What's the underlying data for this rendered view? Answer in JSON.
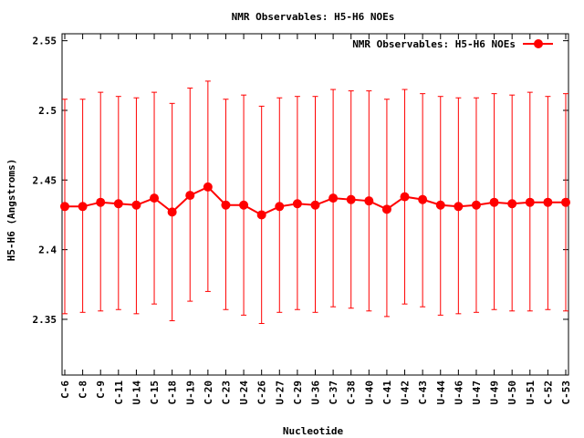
{
  "chart_data": {
    "type": "line",
    "title": "NMR Observables: H5-H6 NOEs",
    "xlabel": "Nucleotide",
    "ylabel": "H5-H6 (Angstroms)",
    "ylim": [
      2.31,
      2.555
    ],
    "yticks": [
      "2.35",
      "2.4",
      "2.45",
      "2.5",
      "2.55"
    ],
    "ytick_values": [
      2.35,
      2.4,
      2.45,
      2.5,
      2.55
    ],
    "grid": false,
    "legend_position": "top-right",
    "categories": [
      "C-6",
      "C-8",
      "C-9",
      "C-11",
      "U-14",
      "C-15",
      "C-18",
      "U-19",
      "C-20",
      "C-23",
      "U-24",
      "C-26",
      "U-27",
      "C-29",
      "U-36",
      "C-37",
      "C-38",
      "U-40",
      "C-41",
      "U-42",
      "C-43",
      "U-44",
      "U-46",
      "U-47",
      "U-49",
      "U-50",
      "U-51",
      "C-52",
      "C-53"
    ],
    "series": [
      {
        "name": "NMR Observables: H5-H6 NOEs",
        "color": "#ff0000",
        "values": [
          2.431,
          2.431,
          2.434,
          2.433,
          2.432,
          2.437,
          2.427,
          2.439,
          2.445,
          2.432,
          2.432,
          2.425,
          2.431,
          2.433,
          2.432,
          2.437,
          2.436,
          2.435,
          2.429,
          2.438,
          2.436,
          2.432,
          2.431,
          2.432,
          2.434,
          2.433,
          2.434,
          2.434,
          2.434
        ],
        "err_low": [
          2.354,
          2.355,
          2.356,
          2.357,
          2.354,
          2.361,
          2.349,
          2.363,
          2.37,
          2.357,
          2.353,
          2.347,
          2.355,
          2.357,
          2.355,
          2.359,
          2.358,
          2.356,
          2.352,
          2.361,
          2.359,
          2.353,
          2.354,
          2.355,
          2.357,
          2.356,
          2.356,
          2.357,
          2.356
        ],
        "err_high": [
          2.508,
          2.508,
          2.513,
          2.51,
          2.509,
          2.513,
          2.505,
          2.516,
          2.521,
          2.508,
          2.511,
          2.503,
          2.509,
          2.51,
          2.51,
          2.515,
          2.514,
          2.514,
          2.508,
          2.515,
          2.512,
          2.51,
          2.509,
          2.509,
          2.512,
          2.511,
          2.513,
          2.51,
          2.512
        ]
      }
    ]
  }
}
